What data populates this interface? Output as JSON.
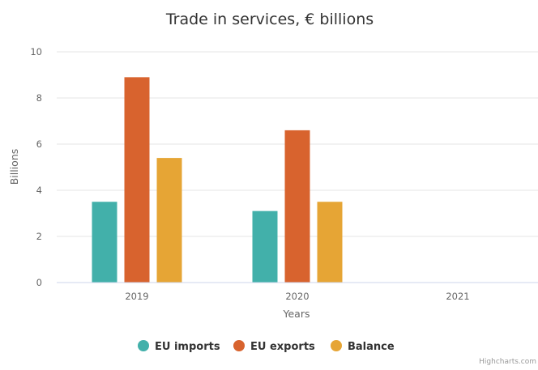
{
  "chart_data": {
    "type": "bar",
    "title": "Trade in services, € billions",
    "xlabel": "Years",
    "ylabel": "Billions",
    "categories": [
      "2019",
      "2020",
      "2021"
    ],
    "y_ticks": [
      "0",
      "2",
      "4",
      "6",
      "8",
      "10"
    ],
    "ylim": [
      0,
      10
    ],
    "grid": true,
    "legend_position": "bottom-center",
    "series": [
      {
        "name": "EU imports",
        "color": "#42b0aa",
        "values": [
          3.5,
          3.1,
          null
        ]
      },
      {
        "name": "EU exports",
        "color": "#d8632e",
        "values": [
          8.9,
          6.6,
          null
        ]
      },
      {
        "name": "Balance",
        "color": "#e6a535",
        "values": [
          5.4,
          3.5,
          null
        ]
      }
    ]
  },
  "credits": "Highcharts.com"
}
